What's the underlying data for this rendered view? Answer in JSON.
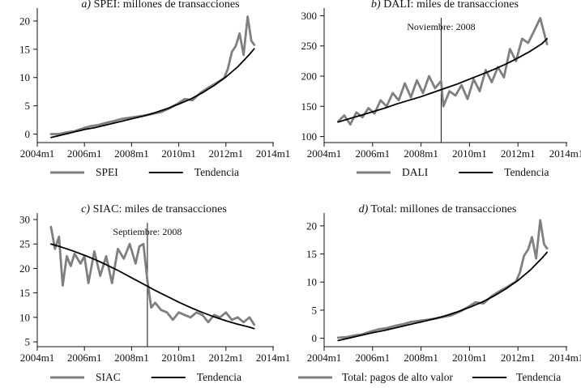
{
  "chart_data": [
    {
      "id": "spei",
      "type": "line",
      "title_prefix": "a)",
      "title": "SPEI: millones de transacciones",
      "x_ticks": [
        "2004m1",
        "2006m1",
        "2008m1",
        "2010m1",
        "2012m1",
        "2014m1"
      ],
      "x_tick_values": [
        2004.0,
        2006.0,
        2008.0,
        2010.0,
        2012.0,
        2014.0
      ],
      "xlim": [
        2004.0,
        2014.0
      ],
      "y_ticks": [
        "0",
        "5",
        "10",
        "15",
        "20"
      ],
      "y_tick_values": [
        0,
        5,
        10,
        15,
        20
      ],
      "ylim": [
        -1.5,
        22
      ],
      "legend": [
        {
          "label": "SPEI",
          "color": "#7f7f7f"
        },
        {
          "label": "Tendencia",
          "color": "#000000"
        }
      ],
      "series": [
        {
          "name": "SPEI",
          "color": "#7f7f7f",
          "x": [
            2004.58,
            2004.92,
            2005.25,
            2005.58,
            2005.92,
            2006.25,
            2006.58,
            2006.92,
            2007.25,
            2007.58,
            2007.92,
            2008.25,
            2008.58,
            2008.92,
            2009.25,
            2009.58,
            2009.92,
            2010.25,
            2010.58,
            2010.92,
            2011.25,
            2011.58,
            2011.92,
            2012.08,
            2012.25,
            2012.42,
            2012.58,
            2012.75,
            2012.92,
            2013.08,
            2013.2
          ],
          "y": [
            0.0,
            0.0,
            0.3,
            0.5,
            1.0,
            1.4,
            1.6,
            2.0,
            2.3,
            2.7,
            2.9,
            3.1,
            3.3,
            3.6,
            3.9,
            4.5,
            5.3,
            6.2,
            6.0,
            7.3,
            8.2,
            9.0,
            9.9,
            11.5,
            14.5,
            15.6,
            17.8,
            14.0,
            20.8,
            16.5,
            15.8
          ]
        },
        {
          "name": "Tendencia",
          "color": "#000000",
          "x": [
            2004.58,
            2005.0,
            2005.5,
            2006.0,
            2006.5,
            2007.0,
            2007.5,
            2008.0,
            2008.5,
            2009.0,
            2009.5,
            2010.0,
            2010.5,
            2011.0,
            2011.5,
            2012.0,
            2012.5,
            2013.0,
            2013.2
          ],
          "y": [
            -0.6,
            -0.2,
            0.3,
            0.8,
            1.2,
            1.7,
            2.2,
            2.7,
            3.2,
            3.8,
            4.5,
            5.3,
            6.2,
            7.3,
            8.6,
            10.1,
            11.9,
            14.1,
            15.1
          ]
        }
      ]
    },
    {
      "id": "dali",
      "type": "line",
      "title_prefix": "b)",
      "title": "DALI: miles de transacciones",
      "x_ticks": [
        "2004m1",
        "2006m1",
        "2008m1",
        "2010m1",
        "2012m1",
        "2014m1"
      ],
      "x_tick_values": [
        2004.0,
        2006.0,
        2008.0,
        2010.0,
        2012.0,
        2014.0
      ],
      "xlim": [
        2004.0,
        2014.0
      ],
      "y_ticks": [
        "100",
        "150",
        "200",
        "250",
        "300"
      ],
      "y_tick_values": [
        100,
        150,
        200,
        250,
        300
      ],
      "ylim": [
        90,
        310
      ],
      "annotation": {
        "text": "Noviembre: 2008",
        "x": 2008.83
      },
      "legend": [
        {
          "label": "DALI",
          "color": "#7f7f7f"
        },
        {
          "label": "Tendencia",
          "color": "#000000"
        }
      ],
      "series": [
        {
          "name": "DALI",
          "color": "#7f7f7f",
          "x": [
            2004.58,
            2004.83,
            2005.08,
            2005.33,
            2005.58,
            2005.83,
            2006.08,
            2006.33,
            2006.58,
            2006.83,
            2007.08,
            2007.33,
            2007.58,
            2007.83,
            2008.08,
            2008.33,
            2008.58,
            2008.83,
            2008.92,
            2009.17,
            2009.42,
            2009.67,
            2009.92,
            2010.17,
            2010.42,
            2010.67,
            2010.92,
            2011.17,
            2011.42,
            2011.67,
            2011.92,
            2012.17,
            2012.42,
            2012.67,
            2012.92,
            2013.2
          ],
          "y": [
            125,
            135,
            120,
            140,
            132,
            147,
            138,
            160,
            150,
            172,
            160,
            188,
            165,
            193,
            172,
            200,
            180,
            192,
            150,
            175,
            168,
            185,
            162,
            195,
            175,
            210,
            190,
            215,
            198,
            245,
            225,
            262,
            255,
            275,
            296,
            253
          ]
        },
        {
          "name": "Tendencia",
          "color": "#000000",
          "x": [
            2004.58,
            2005.0,
            2005.5,
            2006.0,
            2006.5,
            2007.0,
            2007.5,
            2008.0,
            2008.5,
            2009.0,
            2009.5,
            2010.0,
            2010.5,
            2011.0,
            2011.5,
            2012.0,
            2012.5,
            2013.0,
            2013.2
          ],
          "y": [
            124,
            129,
            135,
            141,
            147,
            154,
            160,
            166,
            173,
            180,
            187,
            195,
            203,
            211,
            220,
            230,
            241,
            254,
            262
          ]
        }
      ]
    },
    {
      "id": "siac",
      "type": "line",
      "title_prefix": "c)",
      "title": "SIAC: miles de transacciones",
      "x_ticks": [
        "2004m1",
        "2006m1",
        "2008m1",
        "2010m1",
        "2012m1",
        "2014m1"
      ],
      "x_tick_values": [
        2004.0,
        2006.0,
        2008.0,
        2010.0,
        2012.0,
        2014.0
      ],
      "xlim": [
        2004.0,
        2014.0
      ],
      "y_ticks": [
        "5",
        "10",
        "15",
        "20",
        "25",
        "30"
      ],
      "y_tick_values": [
        5,
        10,
        15,
        20,
        25,
        30
      ],
      "ylim": [
        4,
        31
      ],
      "annotation": {
        "text": "Septiembre: 2008",
        "x": 2008.67
      },
      "legend": [
        {
          "label": "SIAC",
          "color": "#7f7f7f"
        },
        {
          "label": "Tendencia",
          "color": "#000000"
        }
      ],
      "series": [
        {
          "name": "SIAC",
          "color": "#7f7f7f",
          "x": [
            2004.58,
            2004.75,
            2004.92,
            2005.08,
            2005.25,
            2005.42,
            2005.58,
            2005.83,
            2006.0,
            2006.17,
            2006.42,
            2006.67,
            2006.92,
            2007.17,
            2007.42,
            2007.67,
            2007.92,
            2008.17,
            2008.33,
            2008.5,
            2008.67,
            2008.83,
            2009.0,
            2009.25,
            2009.5,
            2009.75,
            2010.0,
            2010.25,
            2010.5,
            2010.75,
            2011.0,
            2011.25,
            2011.5,
            2011.75,
            2012.0,
            2012.25,
            2012.5,
            2012.75,
            2013.0,
            2013.2
          ],
          "y": [
            28.5,
            24.0,
            26.5,
            16.5,
            22.5,
            20.5,
            23.0,
            21.0,
            22.5,
            17.0,
            23.5,
            18.5,
            22.5,
            17.0,
            24.0,
            22.0,
            25.0,
            21.0,
            24.5,
            25.0,
            17.5,
            12.0,
            13.0,
            11.5,
            11.0,
            9.5,
            11.0,
            10.5,
            10.0,
            11.0,
            10.5,
            9.0,
            10.5,
            10.0,
            11.0,
            9.5,
            10.0,
            9.0,
            10.0,
            8.5
          ]
        },
        {
          "name": "Tendencia",
          "color": "#000000",
          "x": [
            2004.58,
            2005.0,
            2005.5,
            2006.0,
            2006.5,
            2007.0,
            2007.5,
            2008.0,
            2008.5,
            2009.0,
            2009.5,
            2010.0,
            2010.5,
            2011.0,
            2011.5,
            2012.0,
            2012.5,
            2013.0,
            2013.2
          ],
          "y": [
            25.0,
            24.4,
            23.6,
            22.7,
            21.7,
            20.6,
            19.4,
            18.1,
            16.8,
            15.5,
            14.3,
            13.1,
            12.0,
            11.0,
            10.1,
            9.3,
            8.6,
            8.0,
            7.7
          ]
        }
      ]
    },
    {
      "id": "total",
      "type": "line",
      "title_prefix": "d)",
      "title": "Total: millones de transacciones",
      "x_ticks": [
        "2004m1",
        "2006m1",
        "2008m1",
        "2010m1",
        "2012m1",
        "2014m1"
      ],
      "x_tick_values": [
        2004.0,
        2006.0,
        2008.0,
        2010.0,
        2012.0,
        2014.0
      ],
      "xlim": [
        2004.0,
        2014.0
      ],
      "y_ticks": [
        "0",
        "5",
        "10",
        "15",
        "20"
      ],
      "y_tick_values": [
        0,
        5,
        10,
        15,
        20
      ],
      "ylim": [
        -1.5,
        22
      ],
      "legend": [
        {
          "label": "Total: pagos de alto valor",
          "color": "#7f7f7f"
        },
        {
          "label": "Tendencia",
          "color": "#000000"
        }
      ],
      "series": [
        {
          "name": "Total: pagos de alto valor",
          "color": "#7f7f7f",
          "x": [
            2004.58,
            2004.92,
            2005.25,
            2005.58,
            2005.92,
            2006.25,
            2006.58,
            2006.92,
            2007.25,
            2007.58,
            2007.92,
            2008.25,
            2008.58,
            2008.92,
            2009.25,
            2009.58,
            2009.92,
            2010.25,
            2010.58,
            2010.92,
            2011.25,
            2011.58,
            2011.92,
            2012.08,
            2012.25,
            2012.42,
            2012.58,
            2012.75,
            2012.92,
            2013.08,
            2013.2
          ],
          "y": [
            0.1,
            0.2,
            0.5,
            0.7,
            1.2,
            1.6,
            1.8,
            2.2,
            2.5,
            2.9,
            3.1,
            3.3,
            3.5,
            3.8,
            4.1,
            4.7,
            5.5,
            6.4,
            6.2,
            7.5,
            8.4,
            9.2,
            10.1,
            11.7,
            14.7,
            15.8,
            18.0,
            14.2,
            21.0,
            16.7,
            16.0
          ]
        },
        {
          "name": "Tendencia",
          "color": "#000000",
          "x": [
            2004.58,
            2005.0,
            2005.5,
            2006.0,
            2006.5,
            2007.0,
            2007.5,
            2008.0,
            2008.5,
            2009.0,
            2009.5,
            2010.0,
            2010.5,
            2011.0,
            2011.5,
            2012.0,
            2012.5,
            2013.0,
            2013.2
          ],
          "y": [
            -0.4,
            0.0,
            0.5,
            1.0,
            1.4,
            1.9,
            2.4,
            2.9,
            3.4,
            4.0,
            4.7,
            5.5,
            6.4,
            7.5,
            8.8,
            10.3,
            12.1,
            14.3,
            15.3
          ]
        }
      ]
    }
  ]
}
